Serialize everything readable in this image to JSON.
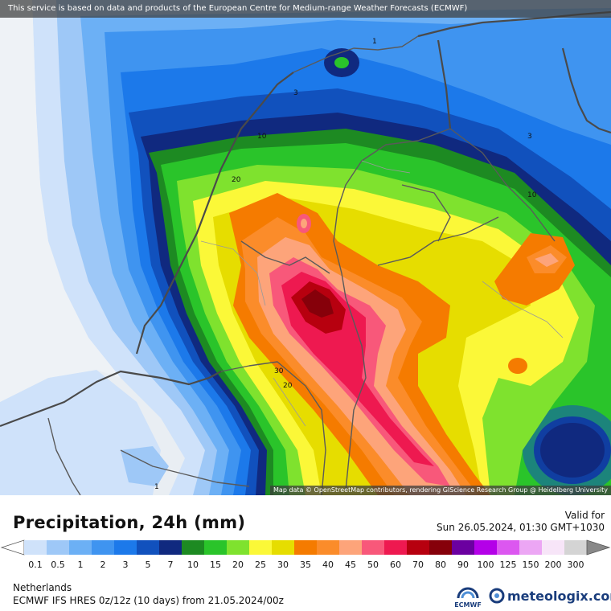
{
  "disclaimer": "This service is based on data and products of the European Centre for Medium-range Weather Forecasts (ECMWF)",
  "attribution": "Map data © OpenStreetMap contributors, rendering GIScience Research Group @ Heidelberg University",
  "title": "Precipitation, 24h (mm)",
  "valid": {
    "label": "Valid for",
    "datetime": "Sun 26.05.2024, 01:30 GMT+1030"
  },
  "region": "Netherlands",
  "model_run": "ECMWF IFS HRES 0z/12z (10 days) from  21.05.2024/00z",
  "logos": {
    "ecmwf": "ECMWF",
    "meteologix": "meteologix.com"
  },
  "contour_labels": [
    "1",
    "3",
    "3",
    "10",
    "10",
    "20",
    "30",
    "20",
    "1"
  ],
  "colors": {
    "land_bg": "#eef2f6",
    "sea": "#e8edf2"
  },
  "legend": [
    {
      "label": "0.1",
      "color": "#cfe2fa"
    },
    {
      "label": "0.5",
      "color": "#9ec8f7"
    },
    {
      "label": "1",
      "color": "#6cb0f5"
    },
    {
      "label": "2",
      "color": "#3f94f0"
    },
    {
      "label": "3",
      "color": "#1c79ea"
    },
    {
      "label": "5",
      "color": "#1151bd"
    },
    {
      "label": "7",
      "color": "#10297f"
    },
    {
      "label": "10",
      "color": "#1d8a22"
    },
    {
      "label": "15",
      "color": "#2ac42a"
    },
    {
      "label": "20",
      "color": "#7fe22e"
    },
    {
      "label": "25",
      "color": "#fbf838"
    },
    {
      "label": "30",
      "color": "#e6dd00"
    },
    {
      "label": "35",
      "color": "#f57b00"
    },
    {
      "label": "40",
      "color": "#fb8c2a"
    },
    {
      "label": "45",
      "color": "#fda47a"
    },
    {
      "label": "50",
      "color": "#f8587a"
    },
    {
      "label": "60",
      "color": "#ee1950"
    },
    {
      "label": "70",
      "color": "#b7000f"
    },
    {
      "label": "80",
      "color": "#86000a"
    },
    {
      "label": "90",
      "color": "#6b00a0"
    },
    {
      "label": "100",
      "color": "#b400e8"
    },
    {
      "label": "125",
      "color": "#dc57f0"
    },
    {
      "label": "150",
      "color": "#eca6f4"
    },
    {
      "label": "200",
      "color": "#f7e5f8"
    },
    {
      "label": "300",
      "color": "#d4d4d4"
    }
  ]
}
